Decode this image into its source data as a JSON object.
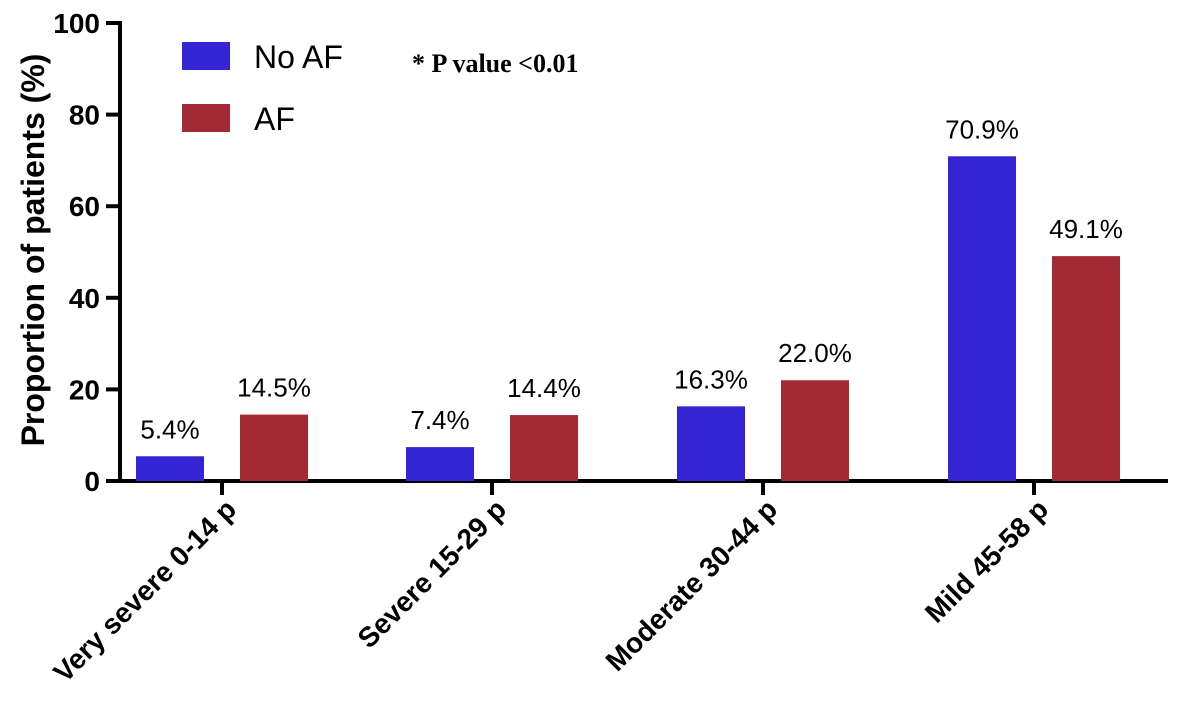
{
  "chart_data": {
    "type": "bar",
    "ylabel": "Proportion of patients (%)",
    "ylim": [
      0,
      100
    ],
    "yticks": [
      0,
      20,
      40,
      60,
      80,
      100
    ],
    "categories": [
      "Very severe 0-14 p",
      "Severe 15-29 p",
      "Moderate 30-44 p",
      "Mild 45-58 p"
    ],
    "series": [
      {
        "name": "No AF",
        "color": "#3325d4",
        "values": [
          5.4,
          7.4,
          16.3,
          70.9
        ],
        "labels": [
          "5.4%",
          "7.4%",
          "16.3%",
          "70.9%"
        ]
      },
      {
        "name": "AF",
        "color": "#a32a35",
        "values": [
          14.5,
          14.4,
          22.0,
          49.1
        ],
        "labels": [
          "14.5%",
          "14.4%",
          "22.0%",
          "49.1%"
        ]
      }
    ],
    "annotation": "* P value <0.01",
    "legend_position": "top-left",
    "grid": false
  }
}
